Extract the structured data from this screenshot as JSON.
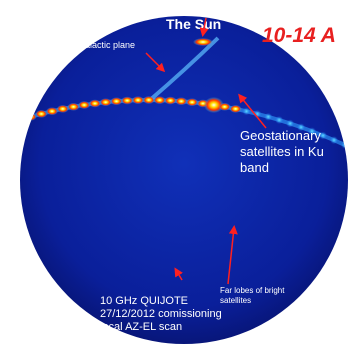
{
  "title": "10-14 A",
  "sun_label": "The Sun",
  "galactic_label": "Galactic plane",
  "geo_label": [
    "Geostationary",
    "satellites in Ku",
    "band"
  ],
  "far_lobes_label": [
    "Far lobes of bright",
    "satellites"
  ],
  "scan_info": [
    "10 GHz QUIJOTE",
    "27/12/2012 comissioning",
    "local AZ-EL scan"
  ]
}
